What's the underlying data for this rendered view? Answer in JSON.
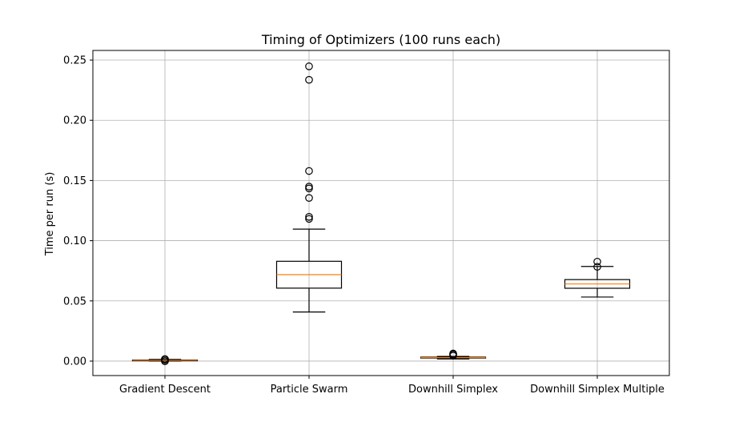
{
  "chart_data": {
    "type": "boxplot",
    "title": "Timing of Optimizers (100 runs each)",
    "xlabel": "",
    "ylabel": "Time per run (s)",
    "ylim": [
      -0.012,
      0.258
    ],
    "yticks": [
      0.0,
      0.05,
      0.1,
      0.15,
      0.2,
      0.25
    ],
    "ytick_labels": [
      "0.00",
      "0.05",
      "0.10",
      "0.15",
      "0.20",
      "0.25"
    ],
    "grid": true,
    "categories": [
      "Gradient Descent",
      "Particle Swarm",
      "Downhill Simplex",
      "Downhill Simplex Multiple"
    ],
    "boxes": [
      {
        "name": "Gradient Descent",
        "whisker_low": 0.0,
        "q1": 0.0003,
        "median": 0.0006,
        "q3": 0.0009,
        "whisker_high": 0.0014,
        "outliers": [
          0.0017,
          0.0015,
          0.0012,
          0.0001,
          -0.0001
        ]
      },
      {
        "name": "Particle Swarm",
        "whisker_low": 0.0408,
        "q1": 0.0606,
        "median": 0.0718,
        "q3": 0.0829,
        "whisker_high": 0.1096,
        "outliers": [
          0.2448,
          0.2336,
          0.1579,
          0.1449,
          0.1434,
          0.1355,
          0.1198,
          0.1181
        ]
      },
      {
        "name": "Downhill Simplex",
        "whisker_low": 0.0018,
        "q1": 0.0025,
        "median": 0.0029,
        "q3": 0.0033,
        "whisker_high": 0.0039,
        "outliers": [
          0.0063,
          0.0055,
          0.0045
        ]
      },
      {
        "name": "Downhill Simplex Multiple",
        "whisker_low": 0.0532,
        "q1": 0.0605,
        "median": 0.0641,
        "q3": 0.0677,
        "whisker_high": 0.0786,
        "outliers": [
          0.0826,
          0.0783
        ]
      }
    ],
    "colors": {
      "box": "#000000",
      "median": "#ff7f0e",
      "grid": "#b0b0b0",
      "background": "#ffffff"
    }
  }
}
